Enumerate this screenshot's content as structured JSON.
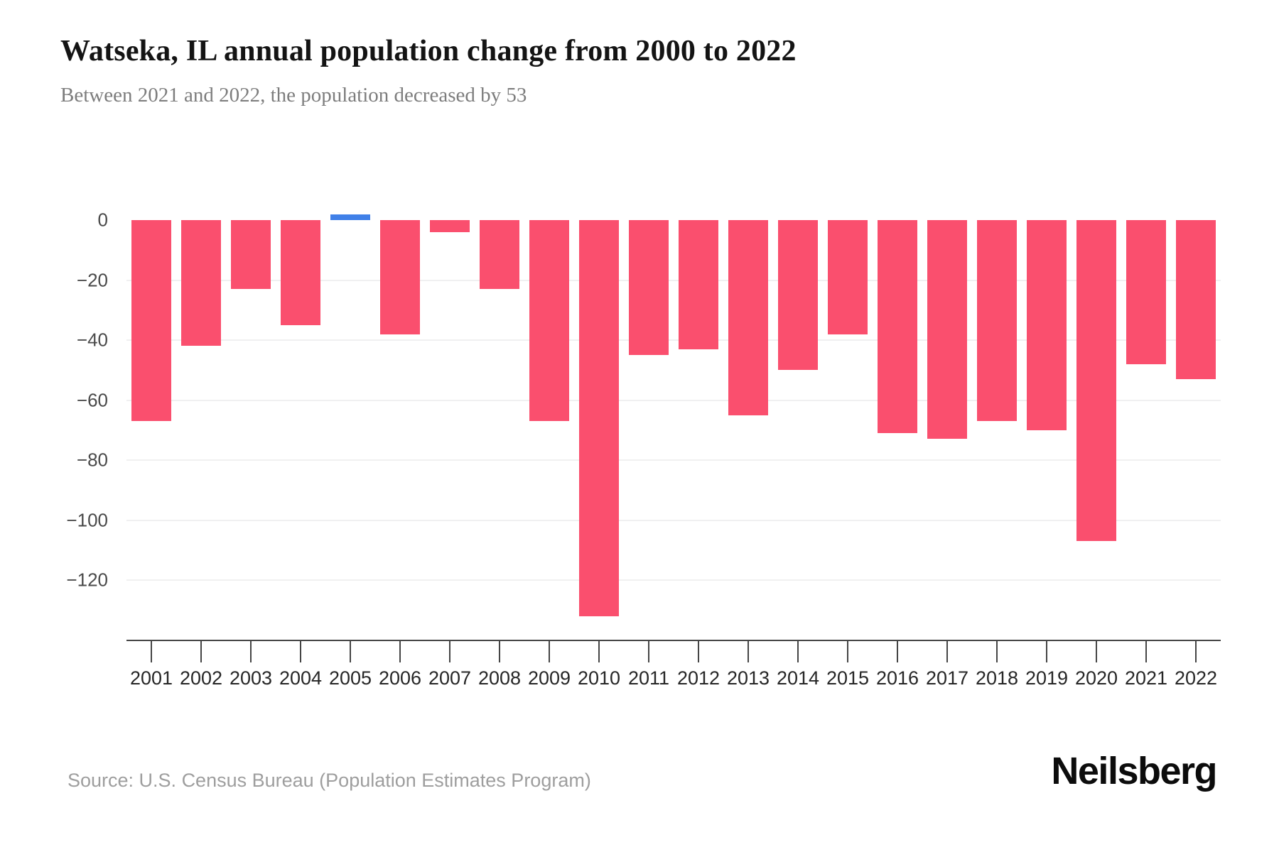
{
  "header": {
    "title": "Watseka, IL annual population change from 2000 to 2022",
    "subtitle": "Between 2021 and 2022, the population decreased by 53"
  },
  "footer": {
    "source": "Source: U.S. Census Bureau (Population Estimates Program)",
    "brand": "Neilsberg"
  },
  "chart_data": {
    "type": "bar",
    "title": "Watseka, IL annual population change from 2000 to 2022",
    "subtitle": "Between 2021 and 2022, the population decreased by 53",
    "categories": [
      2001,
      2002,
      2003,
      2004,
      2005,
      2006,
      2007,
      2008,
      2009,
      2010,
      2011,
      2012,
      2013,
      2014,
      2015,
      2016,
      2017,
      2018,
      2019,
      2020,
      2021,
      2022
    ],
    "values": [
      -67,
      -42,
      -23,
      -35,
      2,
      -38,
      -4,
      -23,
      -67,
      -132,
      -45,
      -43,
      -65,
      -50,
      -38,
      -71,
      -73,
      -67,
      -70,
      -107,
      -48,
      -53
    ],
    "xlabel": "",
    "ylabel": "",
    "ylim": [
      -140,
      2
    ],
    "yticks": [
      0,
      -20,
      -40,
      -60,
      -80,
      -100,
      -120
    ],
    "grid": "horizontal",
    "legend": false,
    "colors": {
      "bar_negative": "#fa4f6e",
      "bar_positive": "#4080e8",
      "gridline": "#f0f0f1",
      "axis": "#454545"
    }
  }
}
